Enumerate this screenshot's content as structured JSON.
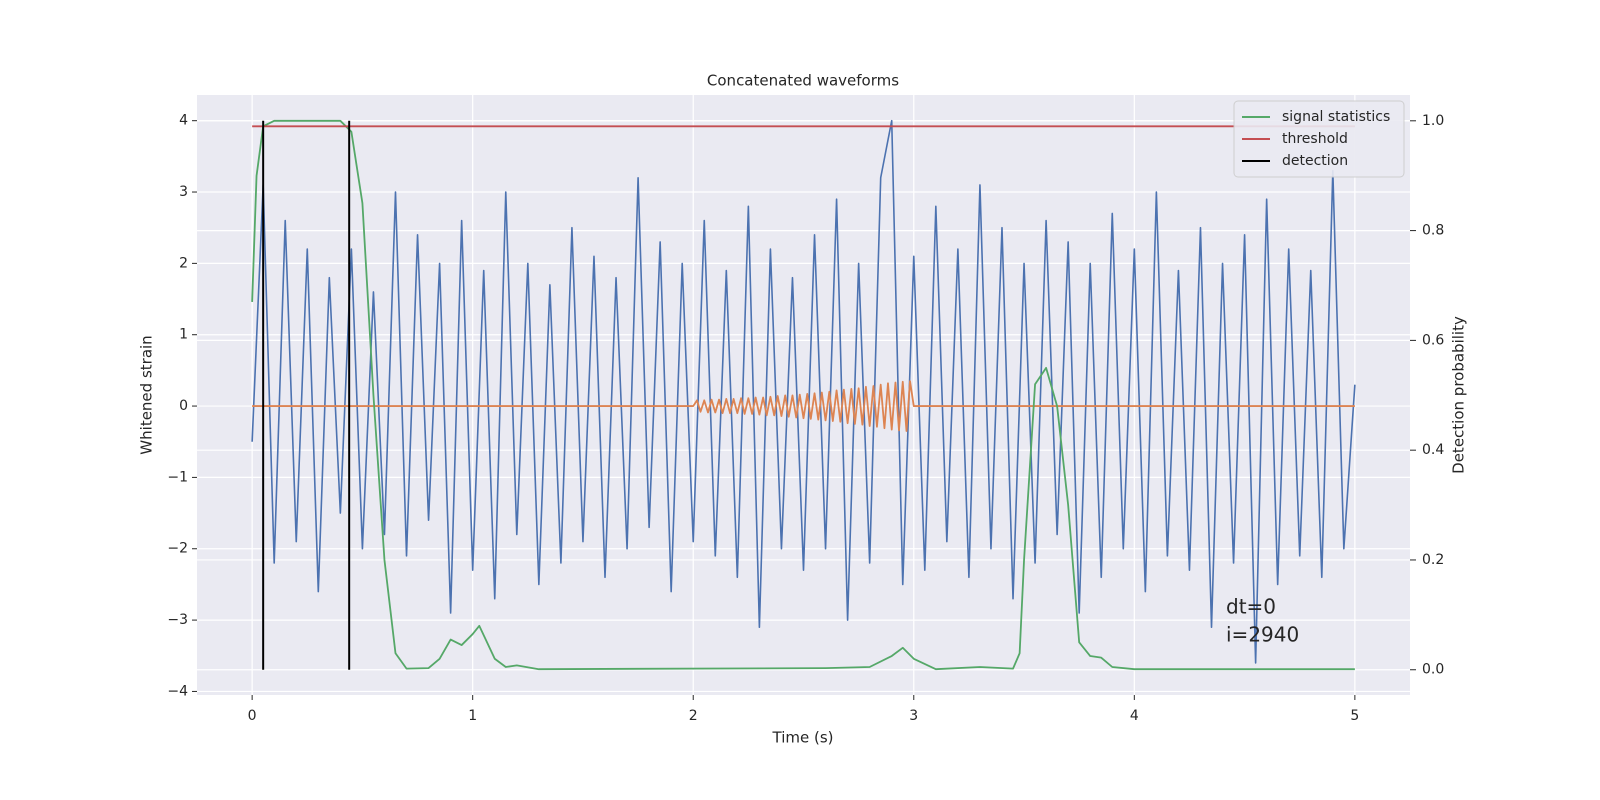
{
  "chart_data": {
    "type": "line",
    "title": "Concatenated waveforms",
    "xlabel": "Time (s)",
    "ylabel": "Whitened strain",
    "y2label": "Detection probability",
    "xlim": [
      -0.25,
      5.25
    ],
    "ylim": [
      -4.05,
      4.36
    ],
    "y2lim": [
      -0.046,
      1.047
    ],
    "xticks": [
      0,
      1,
      2,
      3,
      4,
      5
    ],
    "yticks": [
      {
        "value": -4,
        "label": "−4"
      },
      {
        "value": -3,
        "label": "−3"
      },
      {
        "value": -2,
        "label": "−2"
      },
      {
        "value": -1,
        "label": "−1"
      },
      0,
      1,
      2,
      3,
      4
    ],
    "y2ticks": [
      {
        "value": 0,
        "label": "0.0"
      },
      0.2,
      0.4,
      0.6,
      0.8,
      {
        "value": 1,
        "label": "1.0"
      }
    ],
    "grid": true,
    "legend": "upper right",
    "annotation": [
      "dt=0",
      "i=2940"
    ],
    "series": [
      {
        "color": "#4c72b0",
        "x": [
          0,
          0.05,
          0.1,
          0.15,
          0.2,
          0.25,
          0.3,
          0.35,
          0.4,
          0.45,
          0.5,
          0.55,
          0.6,
          0.65,
          0.7,
          0.75,
          0.8,
          0.85,
          0.9,
          0.95,
          1,
          1.05,
          1.1,
          1.15,
          1.2,
          1.25,
          1.3,
          1.35,
          1.4,
          1.45,
          1.5,
          1.55,
          1.6,
          1.65,
          1.7,
          1.75,
          1.8,
          1.85,
          1.9,
          1.95,
          2,
          2.05,
          2.1,
          2.15,
          2.2,
          2.25,
          2.3,
          2.35,
          2.4,
          2.45,
          2.5,
          2.55,
          2.6,
          2.65,
          2.7,
          2.75,
          2.8,
          2.85,
          2.9,
          2.95,
          3,
          3.05,
          3.1,
          3.15,
          3.2,
          3.25,
          3.3,
          3.35,
          3.4,
          3.45,
          3.5,
          3.55,
          3.6,
          3.65,
          3.7,
          3.75,
          3.8,
          3.85,
          3.9,
          3.95,
          4,
          4.05,
          4.1,
          4.15,
          4.2,
          4.25,
          4.3,
          4.35,
          4.4,
          4.45,
          4.5,
          4.55,
          4.6,
          4.65,
          4.7,
          4.75,
          4.8,
          4.85,
          4.9,
          4.95,
          5
        ],
        "values": [
          -0.5,
          3.1,
          -2.2,
          2.6,
          -1.9,
          2.2,
          -2.6,
          1.8,
          -1.5,
          2.2,
          -2.0,
          1.6,
          -1.8,
          3.0,
          -2.1,
          2.4,
          -1.6,
          2.0,
          -2.9,
          2.6,
          -2.3,
          1.9,
          -2.7,
          3.0,
          -1.8,
          2.0,
          -2.5,
          1.7,
          -2.2,
          2.5,
          -1.9,
          2.1,
          -2.4,
          1.8,
          -2.0,
          3.2,
          -1.7,
          2.3,
          -2.6,
          2.0,
          -1.9,
          2.6,
          -2.1,
          1.9,
          -2.4,
          2.8,
          -3.1,
          2.2,
          -2.0,
          1.8,
          -2.3,
          2.4,
          -2.0,
          2.9,
          -3.0,
          2.0,
          -2.2,
          3.2,
          4.0,
          -2.5,
          2.1,
          -2.3,
          2.8,
          -1.9,
          2.2,
          -2.4,
          3.1,
          -2.0,
          2.5,
          -2.7,
          2.0,
          -2.2,
          2.6,
          -1.8,
          2.3,
          -2.9,
          2.0,
          -2.4,
          2.7,
          -2.0,
          2.2,
          -2.6,
          3.0,
          -2.1,
          1.9,
          -2.3,
          2.5,
          -3.1,
          2.0,
          -2.2,
          2.4,
          -3.6,
          2.9,
          -2.5,
          2.2,
          -2.1,
          1.9,
          -2.4,
          3.3,
          -2.0,
          0.3
        ]
      },
      {
        "color": "#dd8452",
        "x": [
          0,
          2,
          2.017,
          2.033,
          2.05,
          2.067,
          2.083,
          2.1,
          2.117,
          2.133,
          2.15,
          2.167,
          2.183,
          2.2,
          2.217,
          2.233,
          2.25,
          2.267,
          2.283,
          2.3,
          2.317,
          2.333,
          2.35,
          2.367,
          2.383,
          2.4,
          2.417,
          2.433,
          2.45,
          2.467,
          2.483,
          2.5,
          2.517,
          2.533,
          2.55,
          2.567,
          2.583,
          2.6,
          2.617,
          2.633,
          2.65,
          2.667,
          2.683,
          2.7,
          2.717,
          2.733,
          2.75,
          2.767,
          2.783,
          2.8,
          2.817,
          2.833,
          2.85,
          2.867,
          2.883,
          2.9,
          2.917,
          2.933,
          2.95,
          2.967,
          2.983,
          3,
          5
        ],
        "values": [
          0,
          0,
          0.08,
          -0.08,
          0.08,
          -0.09,
          0.09,
          -0.09,
          0.09,
          -0.1,
          0.1,
          -0.1,
          0.1,
          -0.1,
          0.11,
          -0.11,
          0.11,
          -0.11,
          0.12,
          -0.12,
          0.12,
          -0.13,
          0.13,
          -0.13,
          0.14,
          -0.14,
          0.15,
          -0.15,
          0.15,
          -0.16,
          0.16,
          -0.17,
          0.17,
          -0.18,
          0.18,
          -0.19,
          0.19,
          -0.2,
          0.2,
          -0.21,
          0.22,
          -0.22,
          0.23,
          -0.24,
          0.24,
          -0.25,
          0.25,
          -0.26,
          0.27,
          -0.28,
          0.28,
          -0.29,
          0.3,
          -0.31,
          0.32,
          -0.33,
          0.33,
          -0.34,
          0.34,
          -0.35,
          0.35,
          0,
          0
        ]
      },
      {
        "name": "signal statistics",
        "color": "#55a868",
        "axis": "y2",
        "x": [
          0,
          0.02,
          0.05,
          0.1,
          0.4,
          0.45,
          0.5,
          0.55,
          0.6,
          0.65,
          0.7,
          0.8,
          0.85,
          0.9,
          0.95,
          1.0,
          1.03,
          1.1,
          1.15,
          1.2,
          1.3,
          2.6,
          2.8,
          2.9,
          2.95,
          3.0,
          3.1,
          3.3,
          3.45,
          3.48,
          3.5,
          3.55,
          3.6,
          3.65,
          3.7,
          3.75,
          3.8,
          3.85,
          3.9,
          4.0,
          5.0
        ],
        "values": [
          0.67,
          0.9,
          0.99,
          1.0,
          1.0,
          0.98,
          0.85,
          0.5,
          0.2,
          0.03,
          0.002,
          0.003,
          0.02,
          0.055,
          0.045,
          0.065,
          0.08,
          0.02,
          0.005,
          0.008,
          0.001,
          0.003,
          0.005,
          0.025,
          0.04,
          0.02,
          0.001,
          0.005,
          0.002,
          0.03,
          0.2,
          0.52,
          0.55,
          0.48,
          0.3,
          0.05,
          0.025,
          0.022,
          0.005,
          0.001,
          0.001
        ]
      },
      {
        "name": "threshold",
        "color": "#c44e52",
        "axis": "y2",
        "x": [
          0,
          5
        ],
        "values": [
          0.99,
          0.99
        ]
      },
      {
        "name": "detection",
        "color": "#000000",
        "axis": "y2",
        "marks": "vlines",
        "x": [
          0.05,
          0.44
        ],
        "values": [
          1,
          1
        ]
      }
    ]
  }
}
